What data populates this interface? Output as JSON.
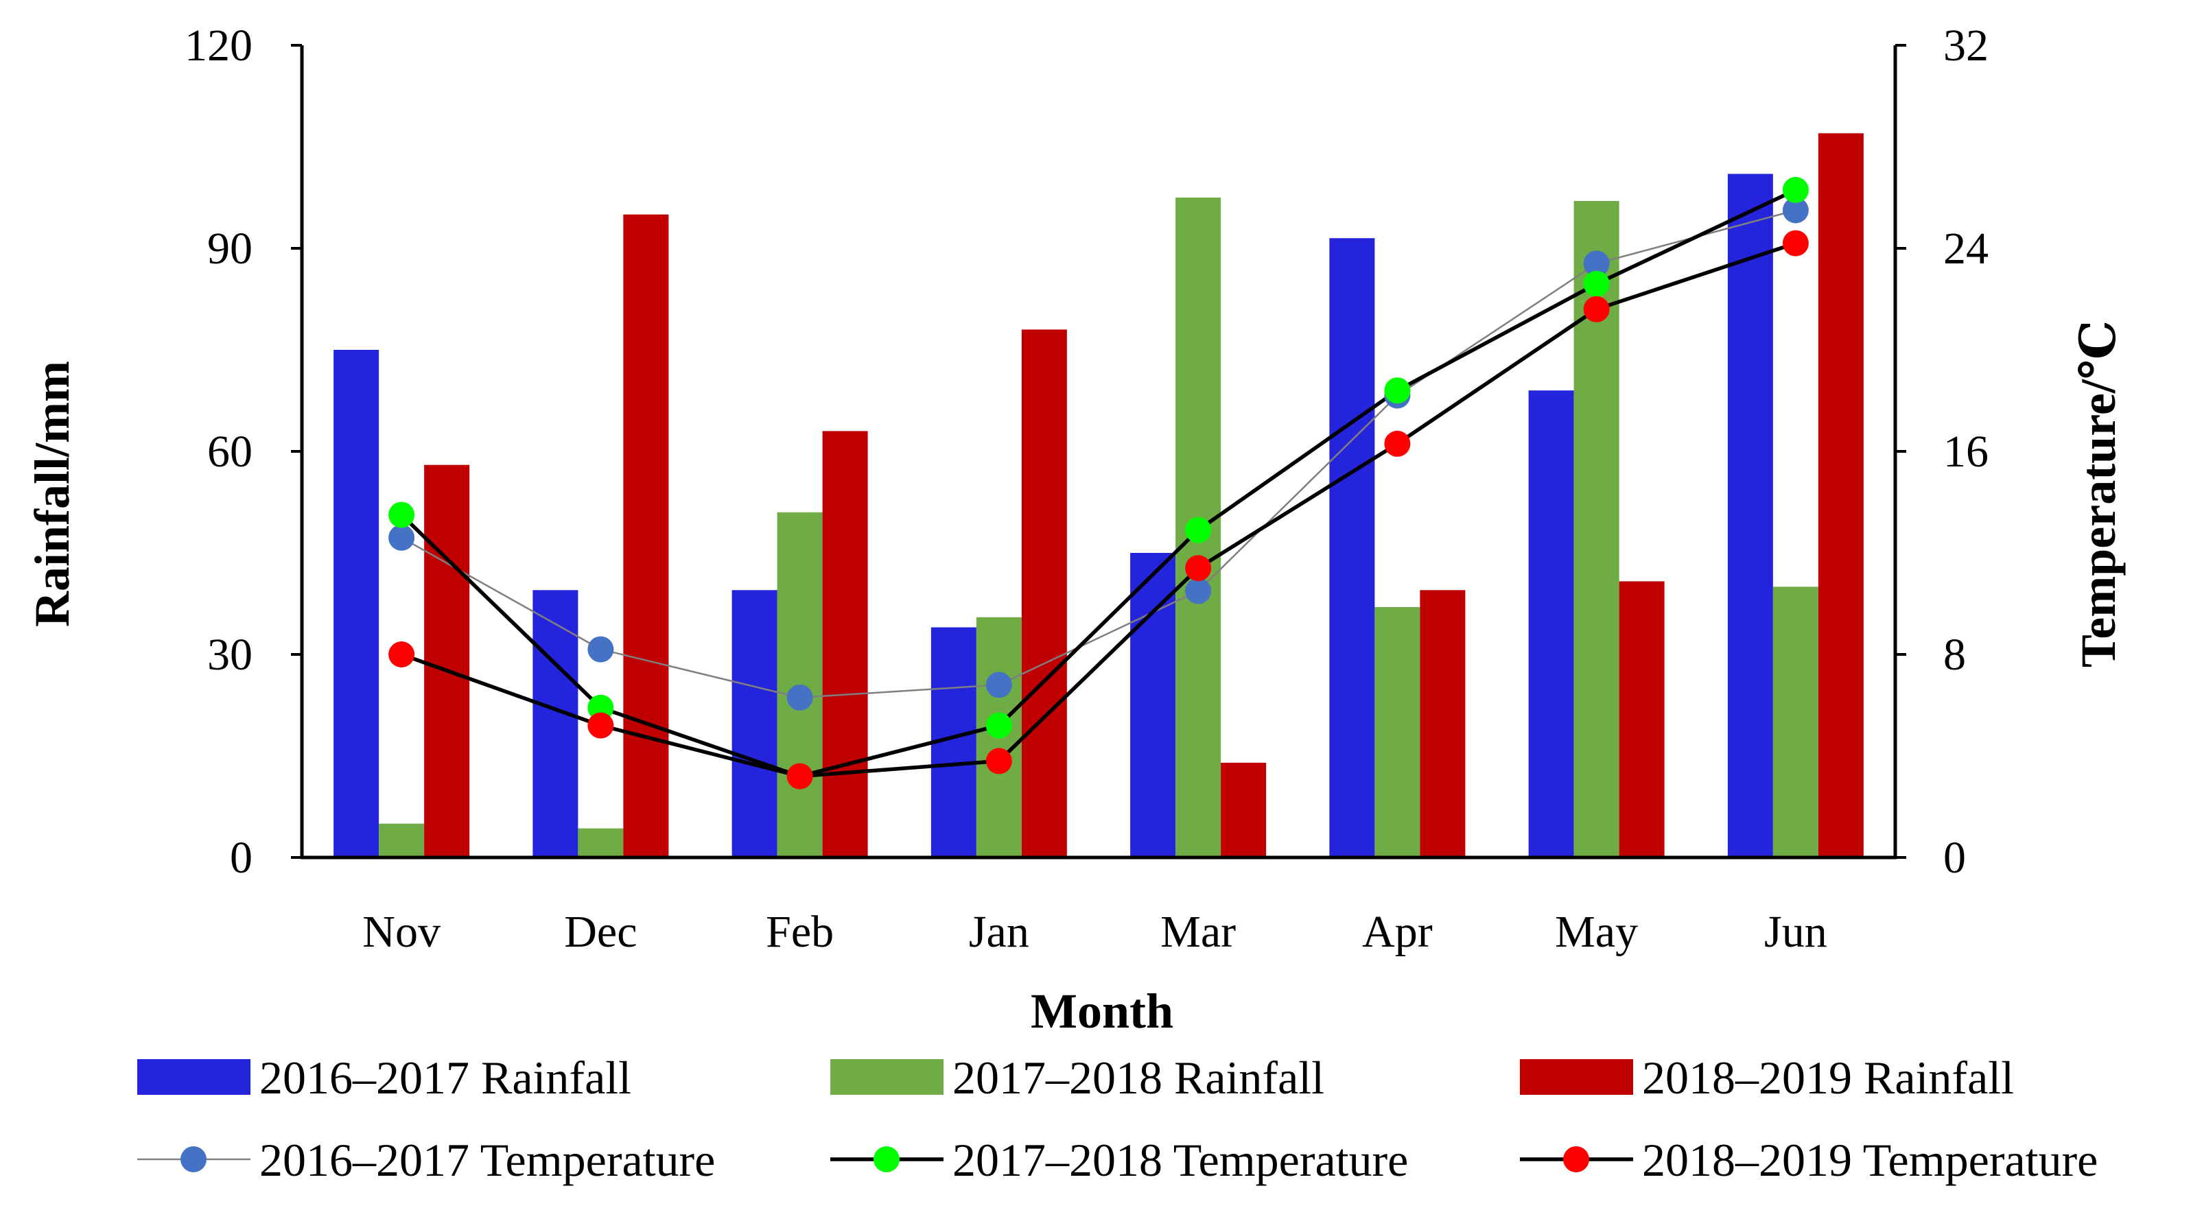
{
  "chart_data": {
    "type": "bar+line",
    "categories": [
      "Nov",
      "Dec",
      "Feb",
      "Jan",
      "Mar",
      "Apr",
      "May",
      "Jun"
    ],
    "xlabel": "Month",
    "ylabel": "Rainfall/mm",
    "y2label": "Temperature/℃",
    "ylim": [
      0,
      120
    ],
    "y2lim": [
      0,
      32
    ],
    "yticks": [
      "0",
      "30",
      "60",
      "90",
      "120"
    ],
    "y2ticks": [
      "0",
      "8",
      "16",
      "24",
      "32"
    ],
    "bar_series": [
      {
        "name": "2016–2017 Rainfall",
        "color": "#2424dc",
        "values": [
          75,
          39.5,
          39.5,
          34,
          45,
          91.5,
          69,
          101
        ]
      },
      {
        "name": "2017–2018 Rainfall",
        "color": "#6fac46",
        "values": [
          5,
          4.3,
          51,
          35.5,
          97.5,
          37,
          97,
          40
        ]
      },
      {
        "name": "2018–2019 Rainfall",
        "color": "#c00000",
        "values": [
          58,
          95,
          63,
          78,
          14,
          39.5,
          40.8,
          107
        ]
      }
    ],
    "line_series": [
      {
        "name": "2016–2017 Temperature",
        "color": "#4472c4",
        "line_color": "#7f7f7f",
        "values": [
          12.6,
          8.2,
          6.3,
          6.8,
          10.5,
          18.2,
          23.4,
          25.5
        ]
      },
      {
        "name": "2017–2018 Temperature",
        "color": "#00ff00",
        "line_color": "#000000",
        "values": [
          13.5,
          5.9,
          3.2,
          5.2,
          12.9,
          18.4,
          22.6,
          26.3
        ]
      },
      {
        "name": "2018–2019 Temperature",
        "color": "#ff0000",
        "line_color": "#000000",
        "values": [
          8.0,
          5.2,
          3.2,
          3.8,
          11.4,
          16.3,
          21.6,
          24.2
        ]
      }
    ],
    "legend": {
      "position": "bottom",
      "entries": [
        "2016–2017 Rainfall",
        "2017–2018 Rainfall",
        "2018–2019 Rainfall",
        "2016–2017 Temperature",
        "2017–2018 Temperature",
        "2018–2019 Temperature"
      ]
    }
  }
}
